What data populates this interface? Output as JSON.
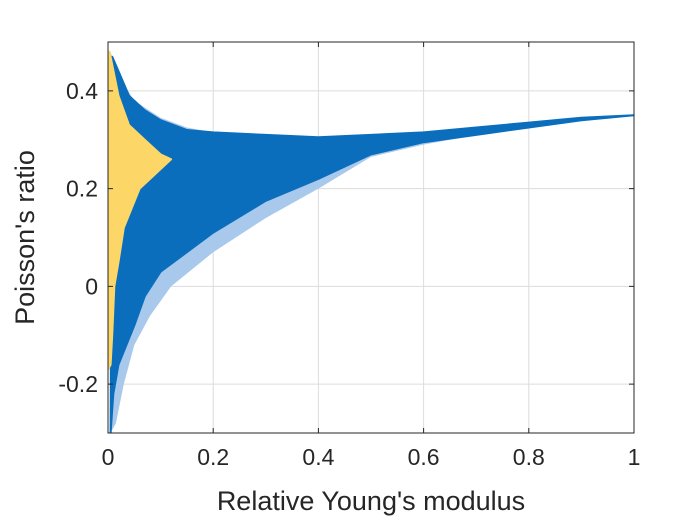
{
  "chart_data": {
    "type": "scatter",
    "title": "",
    "xlabel": "Relative Young's modulus",
    "ylabel": "Poisson's ratio",
    "xlim": [
      0,
      1
    ],
    "ylim": [
      -0.3,
      0.5
    ],
    "grid": true,
    "xticks": [
      0,
      0.2,
      0.4,
      0.6,
      0.8,
      1
    ],
    "xtick_labels": [
      "0",
      "0.2",
      "0.4",
      "0.6",
      "0.8",
      "1"
    ],
    "yticks": [
      -0.2,
      0,
      0.2,
      0.4
    ],
    "ytick_labels": [
      "-0.2",
      "0",
      "0.2",
      "0.4"
    ],
    "colors": {
      "light_region": "#a9c9ec",
      "blue_points": "#0a6ebd",
      "yellow_points": "#fcd767"
    },
    "series": [
      {
        "kind": "filled-region",
        "color": "#a9c9ec",
        "upper": [
          [
            0.005,
            0.48
          ],
          [
            0.02,
            0.43
          ],
          [
            0.05,
            0.38
          ],
          [
            0.1,
            0.345
          ],
          [
            0.15,
            0.325
          ],
          [
            0.2,
            0.315
          ],
          [
            0.3,
            0.31
          ],
          [
            0.4,
            0.305
          ],
          [
            0.5,
            0.31
          ],
          [
            0.6,
            0.315
          ],
          [
            0.7,
            0.325
          ],
          [
            0.8,
            0.335
          ],
          [
            0.9,
            0.345
          ],
          [
            1.0,
            0.35
          ]
        ],
        "lower": [
          [
            1.0,
            0.35
          ],
          [
            0.9,
            0.34
          ],
          [
            0.8,
            0.325
          ],
          [
            0.7,
            0.31
          ],
          [
            0.6,
            0.29
          ],
          [
            0.5,
            0.265
          ],
          [
            0.4,
            0.2
          ],
          [
            0.3,
            0.14
          ],
          [
            0.2,
            0.07
          ],
          [
            0.12,
            0.0
          ],
          [
            0.08,
            -0.06
          ],
          [
            0.05,
            -0.12
          ],
          [
            0.03,
            -0.2
          ],
          [
            0.015,
            -0.28
          ],
          [
            0.005,
            -0.3
          ]
        ]
      },
      {
        "kind": "scatter-cloud",
        "color": "#0a6ebd",
        "upper": [
          [
            0.008,
            0.47
          ],
          [
            0.02,
            0.44
          ],
          [
            0.04,
            0.39
          ],
          [
            0.07,
            0.36
          ],
          [
            0.1,
            0.34
          ],
          [
            0.15,
            0.32
          ],
          [
            0.2,
            0.315
          ],
          [
            0.3,
            0.31
          ],
          [
            0.4,
            0.305
          ],
          [
            0.5,
            0.31
          ],
          [
            0.6,
            0.315
          ],
          [
            0.7,
            0.325
          ],
          [
            0.8,
            0.335
          ],
          [
            0.9,
            0.345
          ],
          [
            1.0,
            0.35
          ]
        ],
        "lower": [
          [
            1.0,
            0.35
          ],
          [
            0.9,
            0.34
          ],
          [
            0.8,
            0.325
          ],
          [
            0.7,
            0.31
          ],
          [
            0.6,
            0.295
          ],
          [
            0.5,
            0.27
          ],
          [
            0.45,
            0.245
          ],
          [
            0.4,
            0.22
          ],
          [
            0.3,
            0.175
          ],
          [
            0.2,
            0.11
          ],
          [
            0.15,
            0.07
          ],
          [
            0.1,
            0.03
          ],
          [
            0.07,
            -0.02
          ],
          [
            0.05,
            -0.08
          ],
          [
            0.035,
            -0.12
          ],
          [
            0.02,
            -0.16
          ],
          [
            0.01,
            -0.22
          ],
          [
            0.005,
            -0.3
          ]
        ]
      },
      {
        "kind": "scatter-cloud",
        "color": "#fcd767",
        "upper": [
          [
            0.0,
            0.48
          ],
          [
            0.003,
            0.48
          ],
          [
            0.02,
            0.39
          ],
          [
            0.04,
            0.33
          ],
          [
            0.07,
            0.3
          ],
          [
            0.1,
            0.27
          ],
          [
            0.12,
            0.26
          ],
          [
            0.09,
            0.23
          ],
          [
            0.06,
            0.2
          ],
          [
            0.03,
            0.12
          ],
          [
            0.02,
            0.05
          ],
          [
            0.012,
            0.0
          ],
          [
            0.008,
            -0.1
          ],
          [
            0.005,
            -0.16
          ],
          [
            0.0,
            -0.17
          ]
        ],
        "lower": []
      }
    ]
  }
}
